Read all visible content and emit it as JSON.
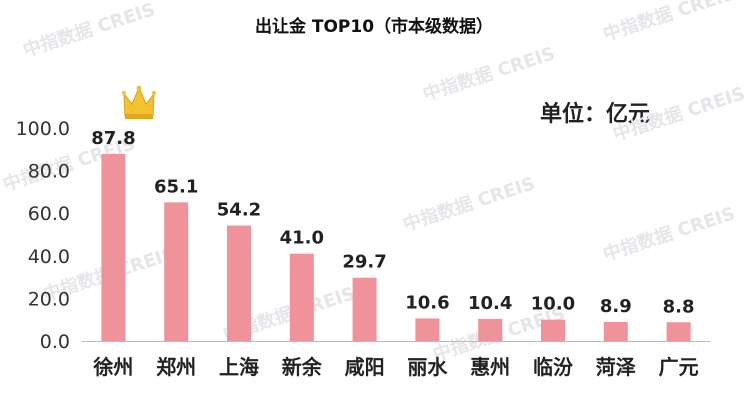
{
  "watermark": "中指数据 CREIS",
  "unit_label": "单位：亿元",
  "chart_data": {
    "type": "bar",
    "title": "出让金 TOP10（市本级数据）",
    "categories": [
      "徐州",
      "郑州",
      "上海",
      "新余",
      "咸阳",
      "丽水",
      "惠州",
      "临汾",
      "菏泽",
      "广元"
    ],
    "values": [
      87.8,
      65.1,
      54.2,
      41.0,
      29.7,
      10.6,
      10.4,
      10.0,
      8.9,
      8.8
    ],
    "value_labels": [
      "87.8",
      "65.1",
      "54.2",
      "41.0",
      "29.7",
      "10.6",
      "10.4",
      "10.0",
      "8.9",
      "8.8"
    ],
    "ylim": [
      0,
      100
    ],
    "yticks": [
      "0.0",
      "20.0",
      "40.0",
      "60.0",
      "80.0",
      "100.0"
    ],
    "bar_color": "#f0929a",
    "grid": false,
    "legend": "none"
  }
}
